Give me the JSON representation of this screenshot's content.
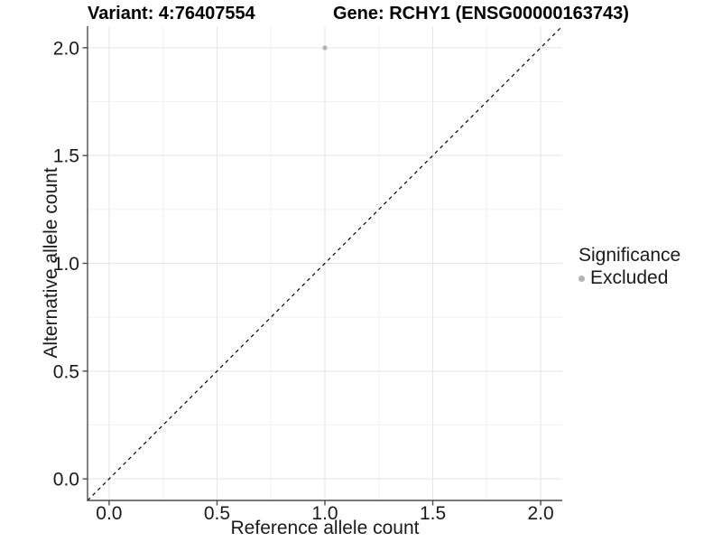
{
  "chart_data": {
    "type": "scatter",
    "title_left": "Variant: 4:76407554",
    "title_right": "Gene: RCHY1 (ENSG00000163743)",
    "xlabel": "Reference allele count",
    "ylabel": "Alternative allele count",
    "xlim": [
      -0.1,
      2.1
    ],
    "ylim": [
      -0.1,
      2.1
    ],
    "xticks": [
      0,
      0.5,
      1,
      1.5,
      2
    ],
    "yticks": [
      0,
      0.5,
      1,
      1.5,
      2
    ],
    "xtick_labels": [
      "0.0",
      "0.5",
      "1.0",
      "1.5",
      "2.0"
    ],
    "ytick_labels": [
      "0.0",
      "0.5",
      "1.0",
      "1.5",
      "2.0"
    ],
    "minor_ticks_x": [
      0.25,
      0.75,
      1.25,
      1.75
    ],
    "minor_ticks_y": [
      0.25,
      0.75,
      1.25,
      1.75
    ],
    "grid": true,
    "points": [
      {
        "x": 1.0,
        "y": 2.0,
        "series": "Excluded"
      }
    ],
    "reference_line": {
      "equation": "y = x",
      "style": "dashed",
      "color": "#000000"
    },
    "legend": {
      "title": "Significance",
      "position": "right",
      "items": [
        {
          "label": "Excluded",
          "color": "#b3b3b3"
        }
      ]
    },
    "colors": {
      "point": "#b3b3b3",
      "grid_major": "#e4e4e4",
      "grid_minor": "#f1f1f1",
      "axis_line": "#4d4d4d",
      "tick_text": "#1a1a1a"
    }
  }
}
